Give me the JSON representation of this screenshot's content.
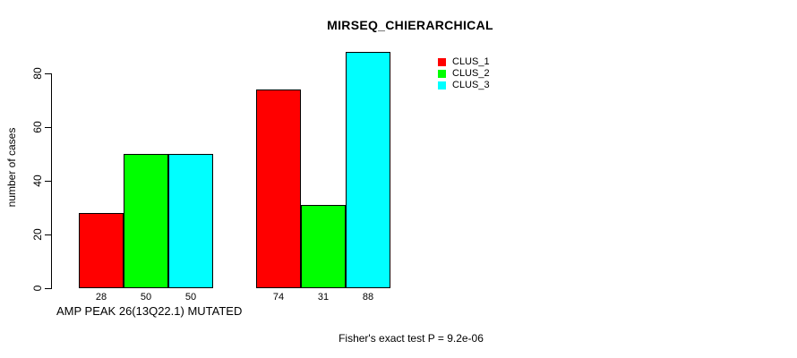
{
  "chart_data": {
    "type": "bar",
    "title": "MIRSEQ_CHIERARCHICAL",
    "ylabel": "number of cases",
    "xlabel": "AMP PEAK 26(13Q22.1) MUTATED",
    "footer": "Fisher's exact test P = 9.2e-06",
    "ylim": [
      0,
      80
    ],
    "yticks": [
      0,
      20,
      40,
      60,
      80
    ],
    "grid": false,
    "legend_position": "top-right",
    "series": [
      {
        "name": "CLUS_1",
        "color": "#ff0000",
        "values": [
          28,
          74
        ]
      },
      {
        "name": "CLUS_2",
        "color": "#00ff00",
        "values": [
          50,
          31
        ]
      },
      {
        "name": "CLUS_3",
        "color": "#00ffff",
        "values": [
          50,
          88
        ]
      }
    ],
    "bar_value_labels": [
      [
        28,
        50,
        50
      ],
      [
        74,
        31,
        88
      ]
    ],
    "colors": {
      "background": "#ffffff",
      "axis": "#000000",
      "text": "#000000"
    }
  }
}
